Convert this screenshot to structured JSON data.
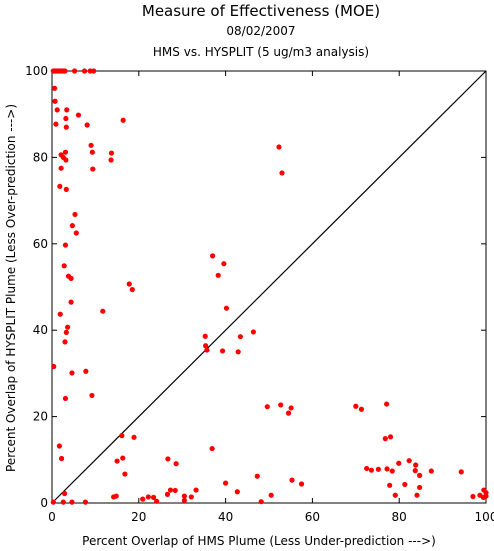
{
  "chart_data": {
    "type": "scatter",
    "title": "Measure of Effectiveness (MOE)",
    "subtitle_date": "08/02/2007",
    "subtitle": "HMS vs. HYSPLIT  (5 ug/m3 analysis)",
    "xlabel": "Percent Overlap of HMS Plume (Less Under-prediction --->)",
    "ylabel": "Percent Overlap of HYSPLIT Plume (Less Over-prediction --->)",
    "xlim": [
      0,
      100
    ],
    "ylim": [
      0,
      100
    ],
    "xticks": [
      0,
      20,
      40,
      60,
      80,
      100
    ],
    "yticks": [
      0,
      20,
      40,
      60,
      80,
      100
    ],
    "reference_line": "diagonal 1:1",
    "marker_color": "#ff0000",
    "line_color": "#000000",
    "grid": false,
    "points": [
      [
        0.3,
        100
      ],
      [
        0.6,
        100
      ],
      [
        0.9,
        100
      ],
      [
        1.2,
        100
      ],
      [
        1.5,
        100
      ],
      [
        1.8,
        100
      ],
      [
        2.1,
        100
      ],
      [
        2.4,
        100
      ],
      [
        2.7,
        100
      ],
      [
        3.0,
        100
      ],
      [
        5.2,
        100
      ],
      [
        7.5,
        100
      ],
      [
        8.8,
        100
      ],
      [
        9.6,
        100
      ],
      [
        0.6,
        96
      ],
      [
        0.7,
        93
      ],
      [
        1.2,
        91
      ],
      [
        3.4,
        91
      ],
      [
        3.2,
        89
      ],
      [
        6.1,
        89.8
      ],
      [
        3.3,
        87
      ],
      [
        8.1,
        87.5
      ],
      [
        0.9,
        87.7
      ],
      [
        16.4,
        88.6
      ],
      [
        9.0,
        82.8
      ],
      [
        9.3,
        81.2
      ],
      [
        2.1,
        80.6
      ],
      [
        2.6,
        80
      ],
      [
        3.1,
        81.2
      ],
      [
        3.2,
        79.4
      ],
      [
        2.1,
        77.5
      ],
      [
        13.7,
        81.0
      ],
      [
        13.6,
        79.4
      ],
      [
        9.4,
        77.3
      ],
      [
        1.8,
        73.3
      ],
      [
        3.3,
        72.6
      ],
      [
        5.3,
        66.8
      ],
      [
        4.7,
        64.2
      ],
      [
        5.6,
        62.5
      ],
      [
        3.1,
        59.7
      ],
      [
        2.8,
        54.9
      ],
      [
        3.8,
        52.5
      ],
      [
        4.4,
        52.0
      ],
      [
        4.4,
        46.5
      ],
      [
        1.9,
        43.7
      ],
      [
        3.6,
        40.7
      ],
      [
        3.3,
        39.5
      ],
      [
        3.0,
        37.3
      ],
      [
        4.6,
        30.1
      ],
      [
        7.8,
        30.5
      ],
      [
        0.4,
        31.6
      ],
      [
        9.2,
        24.9
      ],
      [
        3.1,
        24.2
      ],
      [
        11.7,
        44.4
      ],
      [
        17.8,
        50.7
      ],
      [
        18.5,
        49.4
      ],
      [
        1.7,
        13.2
      ],
      [
        2.2,
        10.3
      ],
      [
        2.9,
        2.2
      ],
      [
        0.3,
        0.2
      ],
      [
        2.6,
        0.2
      ],
      [
        4.6,
        0.2
      ],
      [
        7.7,
        0.2
      ],
      [
        14.2,
        1.4
      ],
      [
        14.8,
        1.6
      ],
      [
        16.1,
        15.6
      ],
      [
        18.9,
        15.2
      ],
      [
        15.0,
        9.7
      ],
      [
        16.3,
        10.4
      ],
      [
        16.8,
        6.7
      ],
      [
        37.0,
        57.2
      ],
      [
        39.6,
        55.4
      ],
      [
        38.3,
        52.7
      ],
      [
        40.2,
        45.1
      ],
      [
        35.3,
        38.6
      ],
      [
        43.4,
        38.5
      ],
      [
        35.4,
        36.4
      ],
      [
        35.7,
        35.4
      ],
      [
        39.3,
        35.2
      ],
      [
        42.9,
        35.0
      ],
      [
        46.4,
        39.6
      ],
      [
        52.3,
        82.4
      ],
      [
        53.0,
        76.4
      ],
      [
        36.9,
        12.6
      ],
      [
        26.7,
        10.2
      ],
      [
        28.6,
        9.1
      ],
      [
        27.3,
        3.0
      ],
      [
        28.4,
        2.9
      ],
      [
        26.6,
        2.0
      ],
      [
        30.5,
        1.6
      ],
      [
        32.1,
        1.4
      ],
      [
        30.5,
        0.6
      ],
      [
        20.9,
        0.9
      ],
      [
        22.2,
        1.4
      ],
      [
        23.4,
        1.3
      ],
      [
        24.1,
        0.4
      ],
      [
        33.2,
        3.0
      ],
      [
        40.0,
        4.6
      ],
      [
        42.7,
        2.6
      ],
      [
        47.3,
        6.2
      ],
      [
        50.5,
        1.8
      ],
      [
        48.2,
        0.3
      ],
      [
        49.6,
        22.3
      ],
      [
        52.7,
        22.7
      ],
      [
        54.5,
        20.8
      ],
      [
        55.1,
        22.0
      ],
      [
        55.3,
        5.3
      ],
      [
        57.5,
        4.4
      ],
      [
        70.0,
        22.4
      ],
      [
        71.3,
        21.7
      ],
      [
        77.1,
        22.9
      ],
      [
        76.8,
        14.9
      ],
      [
        78.0,
        15.3
      ],
      [
        72.5,
        8.0
      ],
      [
        73.6,
        7.6
      ],
      [
        75.2,
        7.8
      ],
      [
        77.2,
        7.9
      ],
      [
        78.4,
        7.4
      ],
      [
        79.9,
        9.2
      ],
      [
        82.3,
        9.8
      ],
      [
        83.8,
        8.8
      ],
      [
        83.7,
        7.5
      ],
      [
        84.7,
        6.4
      ],
      [
        87.4,
        7.4
      ],
      [
        94.3,
        7.2
      ],
      [
        77.8,
        4.1
      ],
      [
        79.1,
        1.8
      ],
      [
        81.3,
        4.3
      ],
      [
        84.7,
        3.6
      ],
      [
        84.1,
        1.8
      ],
      [
        97.0,
        1.5
      ],
      [
        98.6,
        1.8
      ],
      [
        99.4,
        1.3
      ],
      [
        99.5,
        3.0
      ],
      [
        100,
        2.4
      ],
      [
        100,
        1.6
      ]
    ]
  }
}
